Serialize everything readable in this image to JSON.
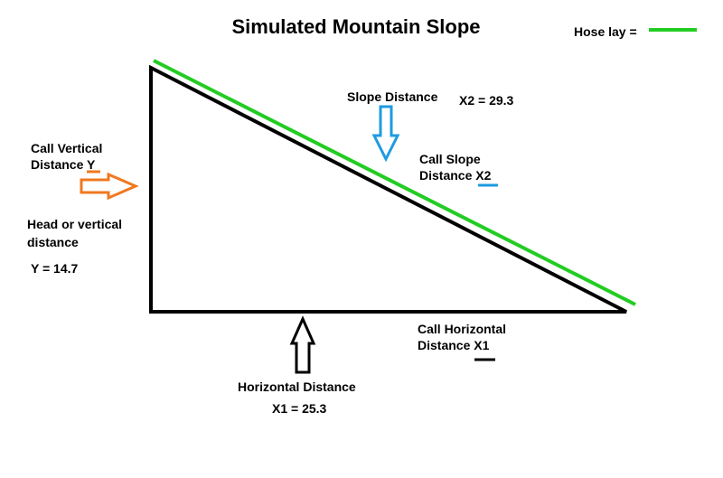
{
  "title": "Simulated Mountain Slope",
  "legend": {
    "label": "Hose lay ="
  },
  "slope": {
    "title": "Slope Distance",
    "value": "X2 = 29.3",
    "call": [
      "Call Slope",
      "Distance X2"
    ]
  },
  "vertical": {
    "call": [
      "Call Vertical",
      "Distance Y"
    ],
    "title": [
      "Head or vertical",
      "distance"
    ],
    "value": "Y = 14.7"
  },
  "horizontal": {
    "call": [
      "Call Horizontal",
      "Distance X1"
    ],
    "title": "Horizontal Distance",
    "value": "X1 = 25.3"
  }
}
